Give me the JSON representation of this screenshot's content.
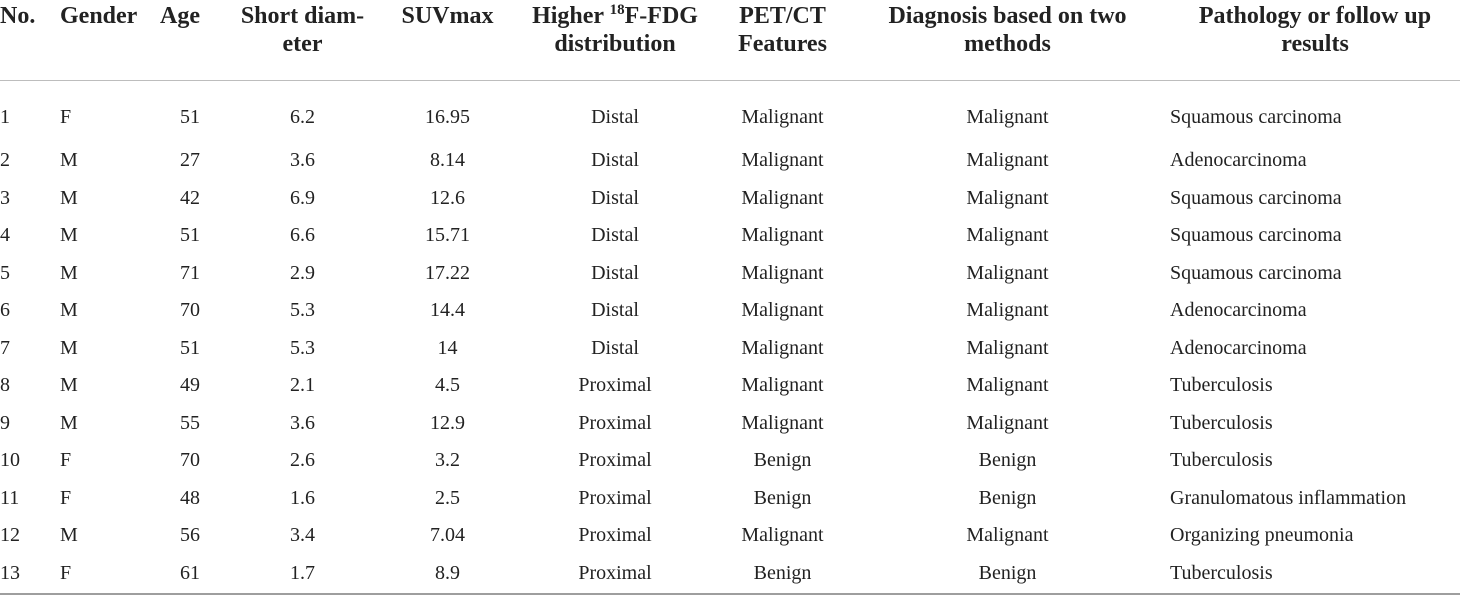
{
  "table": {
    "headers": {
      "no": "No.",
      "gender": "Gender",
      "age": "Age",
      "short_diameter": "Short diam-eter",
      "short_diameter_line1": "Short diam-",
      "short_diameter_line2": "eter",
      "suvmax": "SUVmax",
      "higher_fdg_prefix": "Higher ",
      "higher_fdg_sup": "18",
      "higher_fdg_suffix": "F-FDG",
      "higher_fdg_line2": "distribution",
      "petct_line1": "PET/CT",
      "petct_line2": "Features",
      "diagnosis_line1": "Diagnosis based on two",
      "diagnosis_line2": "methods",
      "pathology_line1": "Pathology or follow up",
      "pathology_line2": "results"
    },
    "rows": [
      {
        "no": "1",
        "gender": "F",
        "age": "51",
        "short_diameter": "6.2",
        "suvmax": "16.95",
        "distribution": "Distal",
        "petct": "Malignant",
        "diagnosis": "Malignant",
        "pathology": "Squamous carcinoma"
      },
      {
        "no": "2",
        "gender": "M",
        "age": "27",
        "short_diameter": "3.6",
        "suvmax": "8.14",
        "distribution": "Distal",
        "petct": "Malignant",
        "diagnosis": "Malignant",
        "pathology": "Adenocarcinoma"
      },
      {
        "no": "3",
        "gender": "M",
        "age": "42",
        "short_diameter": "6.9",
        "suvmax": "12.6",
        "distribution": "Distal",
        "petct": "Malignant",
        "diagnosis": "Malignant",
        "pathology": "Squamous carcinoma"
      },
      {
        "no": "4",
        "gender": "M",
        "age": "51",
        "short_diameter": "6.6",
        "suvmax": "15.71",
        "distribution": "Distal",
        "petct": "Malignant",
        "diagnosis": "Malignant",
        "pathology": "Squamous carcinoma"
      },
      {
        "no": "5",
        "gender": "M",
        "age": "71",
        "short_diameter": "2.9",
        "suvmax": "17.22",
        "distribution": "Distal",
        "petct": "Malignant",
        "diagnosis": "Malignant",
        "pathology": "Squamous carcinoma"
      },
      {
        "no": "6",
        "gender": "M",
        "age": "70",
        "short_diameter": "5.3",
        "suvmax": "14.4",
        "distribution": "Distal",
        "petct": "Malignant",
        "diagnosis": "Malignant",
        "pathology": "Adenocarcinoma"
      },
      {
        "no": "7",
        "gender": "M",
        "age": "51",
        "short_diameter": "5.3",
        "suvmax": "14",
        "distribution": "Distal",
        "petct": "Malignant",
        "diagnosis": "Malignant",
        "pathology": "Adenocarcinoma"
      },
      {
        "no": "8",
        "gender": "M",
        "age": "49",
        "short_diameter": "2.1",
        "suvmax": "4.5",
        "distribution": "Proximal",
        "petct": "Malignant",
        "diagnosis": "Malignant",
        "pathology": "Tuberculosis"
      },
      {
        "no": "9",
        "gender": "M",
        "age": "55",
        "short_diameter": "3.6",
        "suvmax": "12.9",
        "distribution": "Proximal",
        "petct": "Malignant",
        "diagnosis": "Malignant",
        "pathology": "Tuberculosis"
      },
      {
        "no": "10",
        "gender": "F",
        "age": "70",
        "short_diameter": "2.6",
        "suvmax": "3.2",
        "distribution": "Proximal",
        "petct": "Benign",
        "diagnosis": "Benign",
        "pathology": "Tuberculosis"
      },
      {
        "no": "11",
        "gender": "F",
        "age": "48",
        "short_diameter": "1.6",
        "suvmax": "2.5",
        "distribution": "Proximal",
        "petct": "Benign",
        "diagnosis": "Benign",
        "pathology": "Granulomatous inflammation"
      },
      {
        "no": "12",
        "gender": "M",
        "age": "56",
        "short_diameter": "3.4",
        "suvmax": "7.04",
        "distribution": "Proximal",
        "petct": "Malignant",
        "diagnosis": "Malignant",
        "pathology": "Organizing pneumonia"
      },
      {
        "no": "13",
        "gender": "F",
        "age": "61",
        "short_diameter": "1.7",
        "suvmax": "8.9",
        "distribution": "Proximal",
        "petct": "Benign",
        "diagnosis": "Benign",
        "pathology": "Tuberculosis"
      }
    ]
  }
}
